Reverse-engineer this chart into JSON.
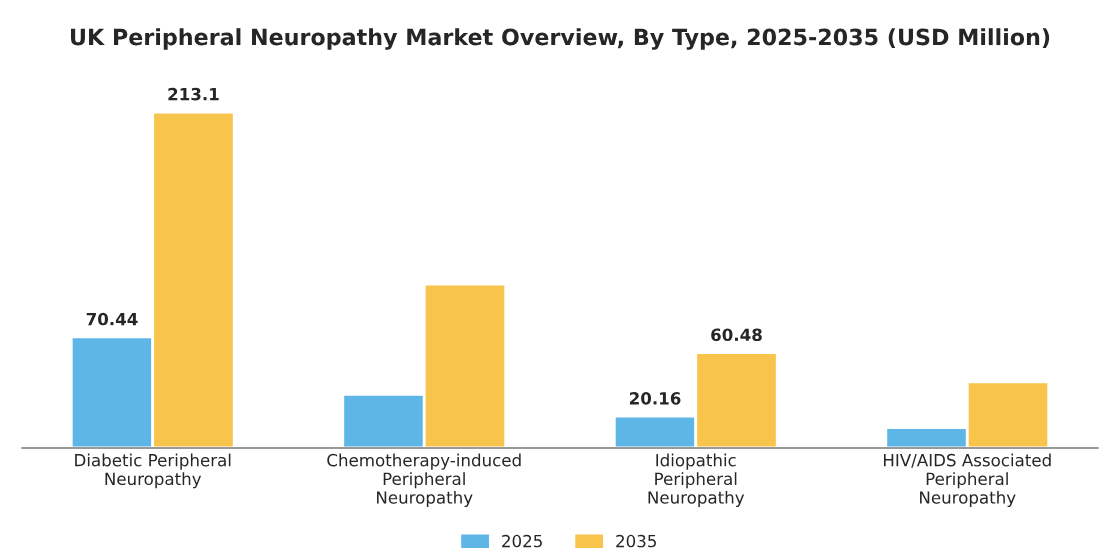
{
  "chart_data": {
    "type": "bar",
    "title": "UK Peripheral Neuropathy Market Overview, By Type, 2025-2035 (USD Million)",
    "categories": [
      "Diabetic Peripheral\nNeuropathy",
      "Chemotherapy-induced\nPeripheral\nNeuropathy",
      "Idiopathic\nPeripheral\nNeuropathy",
      "HIV/AIDS Associated\nPeripheral\nNeuropathy"
    ],
    "series": [
      {
        "name": "2025",
        "color": "#5db6e6",
        "values": [
          70.44,
          34,
          20.16,
          13
        ],
        "value_labels": [
          "70.44",
          null,
          "20.16",
          null
        ]
      },
      {
        "name": "2035",
        "color": "#f8c44c",
        "values": [
          213.1,
          104,
          60.48,
          42
        ],
        "value_labels": [
          "213.1",
          null,
          "60.48",
          null
        ]
      }
    ],
    "legend": "bottom",
    "grid": false
  }
}
